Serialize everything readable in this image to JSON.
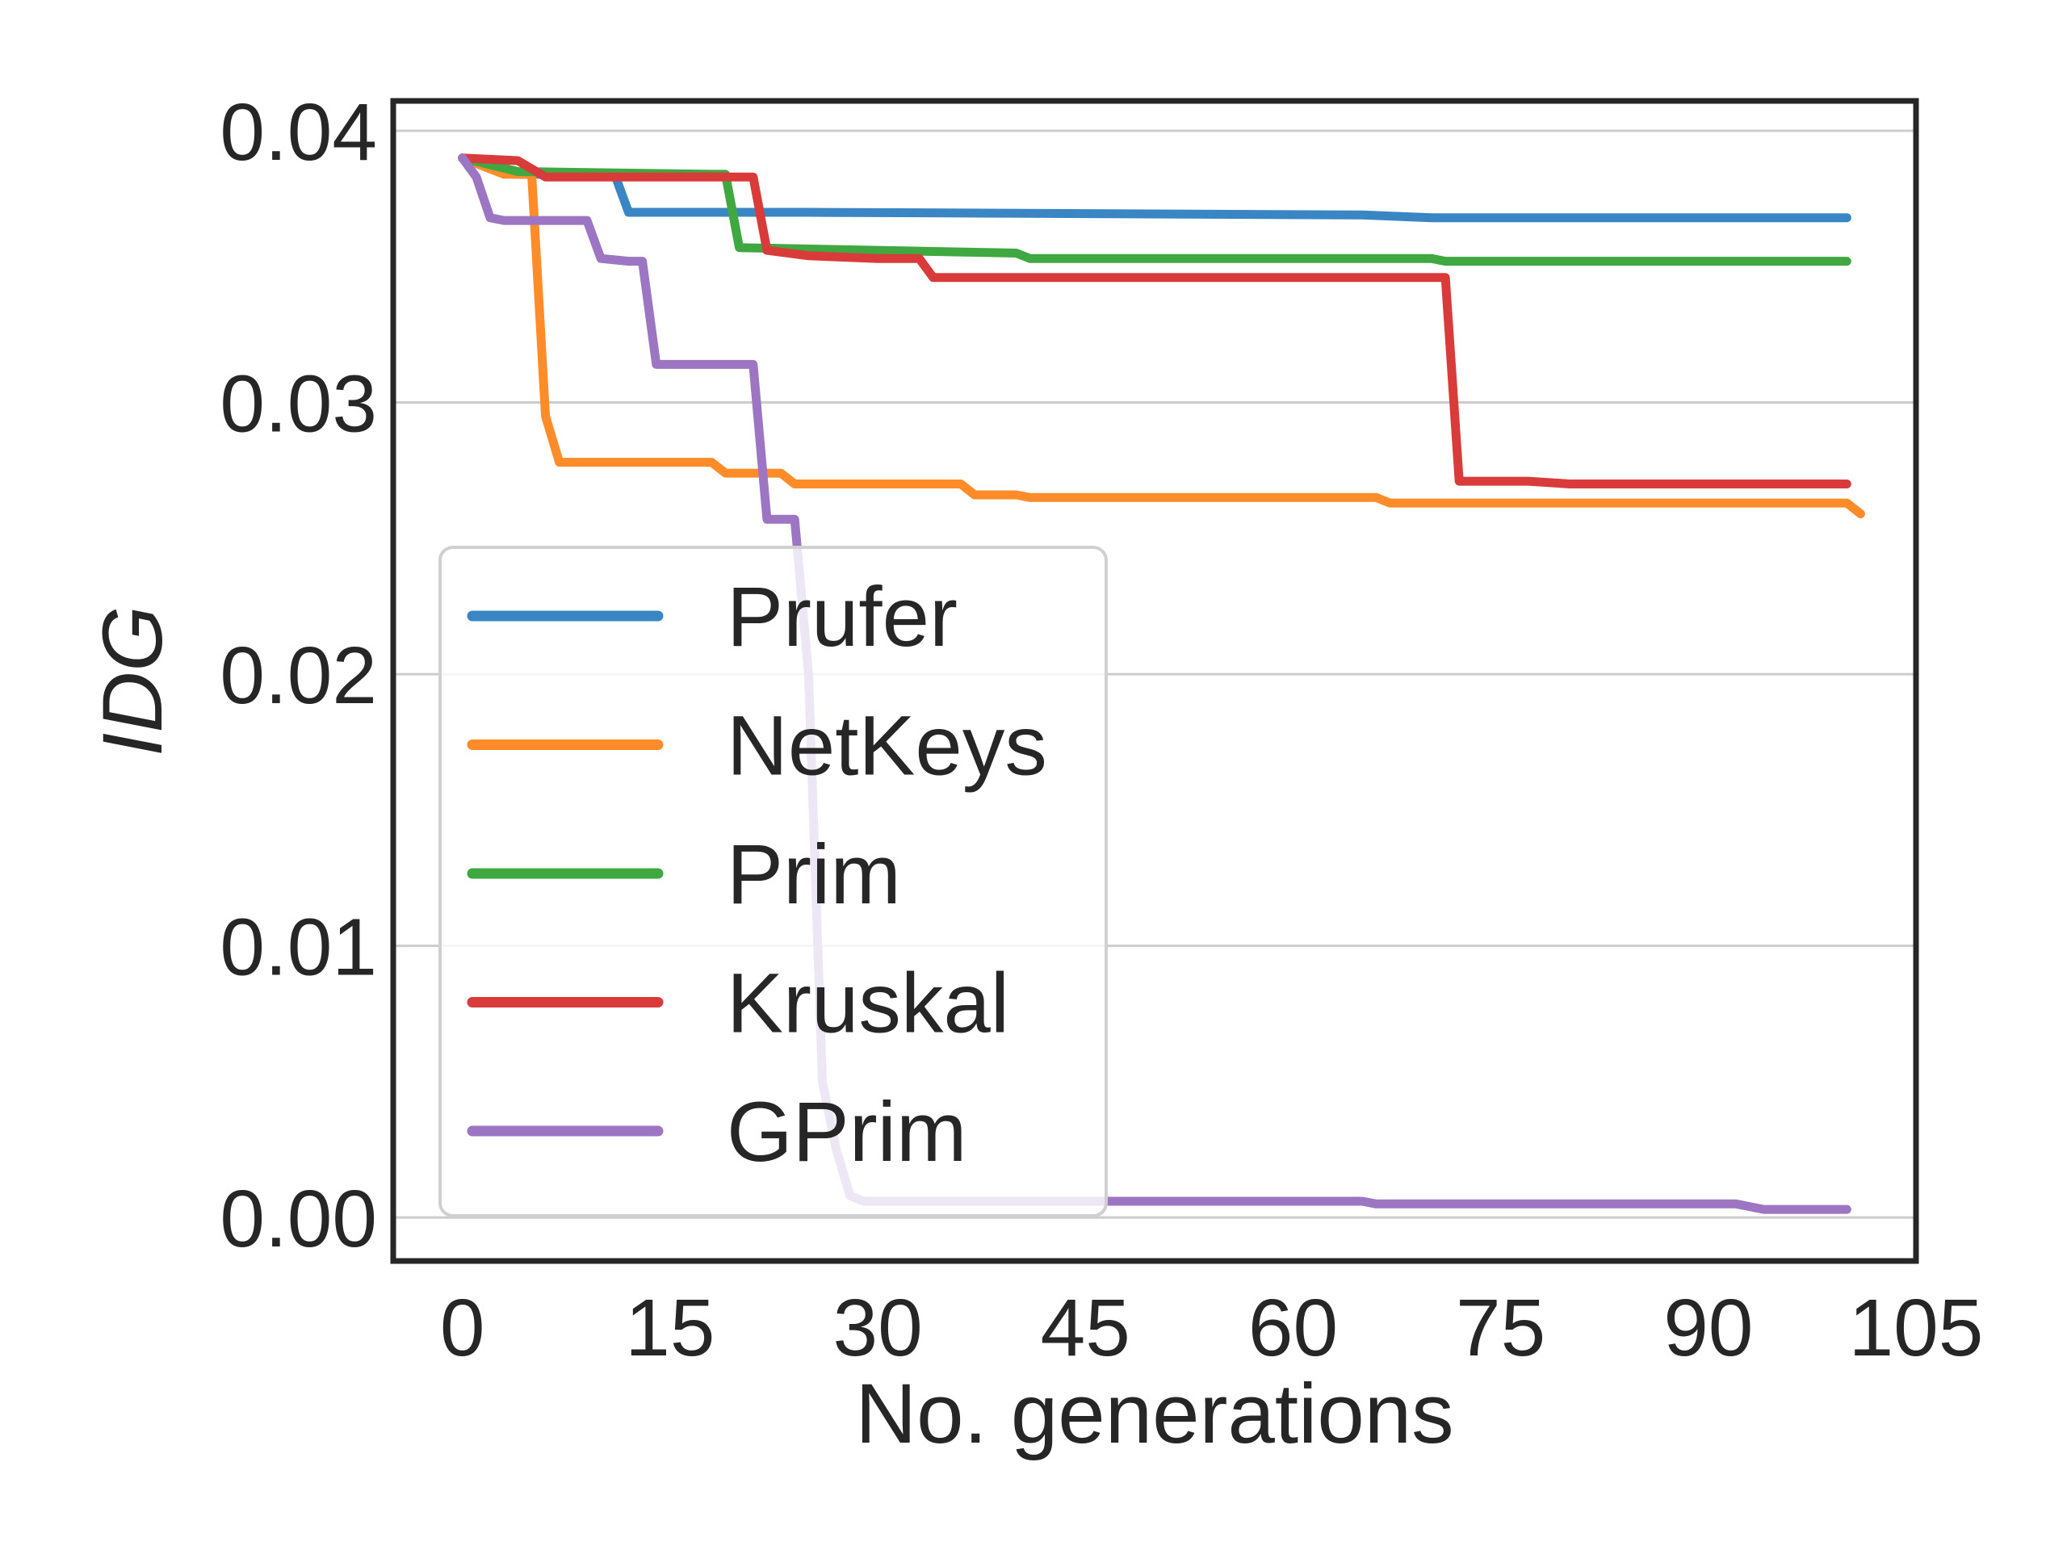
{
  "chart_data": {
    "type": "line",
    "title": "",
    "xlabel": "No. generations",
    "ylabel": "IDG",
    "xlim": [
      -5,
      105
    ],
    "ylim": [
      -0.0016,
      0.0411
    ],
    "xticks": [
      0,
      15,
      30,
      45,
      60,
      75,
      90,
      105
    ],
    "xtick_labels": [
      "0",
      "15",
      "30",
      "45",
      "60",
      "75",
      "90",
      "105"
    ],
    "yticks": [
      0.0,
      0.01,
      0.02,
      0.03,
      0.04
    ],
    "ytick_labels": [
      "0.00",
      "0.01",
      "0.02",
      "0.03",
      "0.04"
    ],
    "grid": "horizontal",
    "legend_position": "lower-left",
    "series": [
      {
        "name": "Prufer",
        "color": "#3a86c4",
        "x": [
          0,
          4,
          11,
          12,
          25,
          65,
          70,
          100
        ],
        "y": [
          0.039,
          0.0384,
          0.0384,
          0.037,
          0.037,
          0.0369,
          0.0368,
          0.0368
        ]
      },
      {
        "name": "NetKeys",
        "color": "#ff8c28",
        "x": [
          0,
          3,
          5,
          6,
          7,
          18,
          19,
          23,
          24,
          36,
          37,
          40,
          41,
          66,
          67,
          100,
          101
        ],
        "y": [
          0.039,
          0.0384,
          0.0384,
          0.0295,
          0.0278,
          0.0278,
          0.0274,
          0.0274,
          0.027,
          0.027,
          0.0266,
          0.0266,
          0.0265,
          0.0265,
          0.0263,
          0.0263,
          0.0259
        ]
      },
      {
        "name": "Prim",
        "color": "#40a840",
        "x": [
          0,
          4,
          18,
          19,
          20,
          40,
          41,
          70,
          71,
          100
        ],
        "y": [
          0.039,
          0.0385,
          0.0384,
          0.0384,
          0.0357,
          0.0355,
          0.0353,
          0.0353,
          0.0352,
          0.0352
        ]
      },
      {
        "name": "Kruskal",
        "color": "#d93b3b",
        "x": [
          0,
          4,
          6,
          20,
          21,
          22,
          25,
          30,
          33,
          34,
          70,
          71,
          72,
          77,
          80,
          100
        ],
        "y": [
          0.039,
          0.0389,
          0.0383,
          0.0383,
          0.0383,
          0.0356,
          0.0354,
          0.0353,
          0.0353,
          0.0346,
          0.0346,
          0.0346,
          0.0271,
          0.0271,
          0.027,
          0.027
        ]
      },
      {
        "name": "GPrim",
        "color": "#9c75c3",
        "x": [
          0,
          1,
          2,
          3,
          9,
          10,
          12,
          13,
          14,
          21,
          22,
          24,
          25,
          26,
          27,
          28,
          29,
          65,
          66,
          92,
          94,
          100
        ],
        "y": [
          0.039,
          0.0383,
          0.0368,
          0.0367,
          0.0367,
          0.0353,
          0.0352,
          0.0352,
          0.0314,
          0.0314,
          0.0257,
          0.0257,
          0.02,
          0.005,
          0.0025,
          0.0008,
          0.0006,
          0.0006,
          0.0005,
          0.0005,
          0.0003,
          0.0003
        ]
      }
    ]
  }
}
